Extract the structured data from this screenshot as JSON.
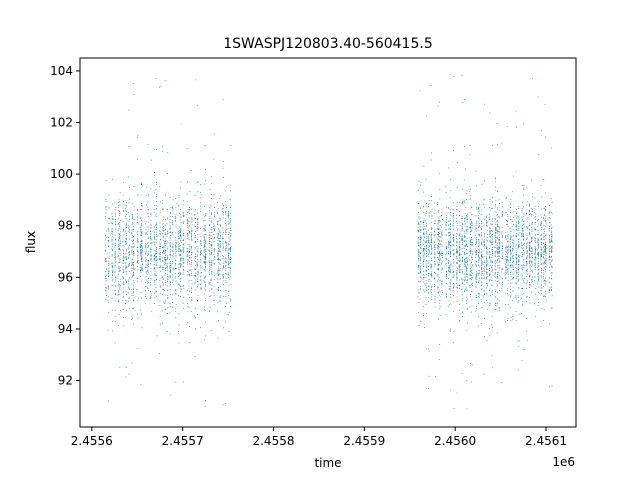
{
  "chart_data": {
    "type": "scatter",
    "title": "1SWASPJ120803.40-560415.5",
    "xlabel": "time",
    "ylabel": "flux",
    "x_offset_label": "1e6",
    "xlim": [
      2455587,
      2456133
    ],
    "ylim": [
      90.2,
      104.5
    ],
    "xticks": [
      2455620,
      2455670,
      2455720,
      2455770,
      2455820,
      2455870,
      2455920,
      2455970,
      2456020,
      2456070,
      2456120
    ],
    "xticks_major": [
      2455600,
      2455700,
      2455800,
      2455900,
      2456000,
      2456100
    ],
    "xtick_labels": [
      "2.4556",
      "2.4557",
      "2.4558",
      "2.4559",
      "2.4560",
      "2.4561"
    ],
    "yticks": [
      92,
      94,
      96,
      98,
      100,
      102,
      104
    ],
    "ytick_labels": [
      "92",
      "94",
      "96",
      "98",
      "100",
      "102",
      "104"
    ],
    "grid": false,
    "series_color": "#1f77b4",
    "series": [
      {
        "segments": [
          {
            "x_start": 2455615,
            "x_end": 2455755,
            "center": 97.0,
            "spread": 1.1,
            "count": 2400,
            "outlier_range": [
              91.0,
              103.8
            ]
          },
          {
            "x_start": 2455958,
            "x_end": 2456108,
            "center": 97.0,
            "spread": 1.0,
            "count": 3000,
            "outlier_range": [
              90.8,
              103.9
            ]
          }
        ]
      }
    ]
  }
}
